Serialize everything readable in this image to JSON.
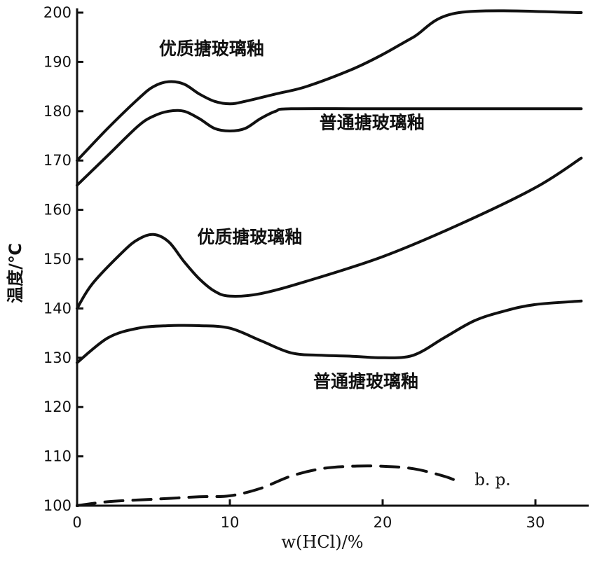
{
  "chart_data": {
    "type": "line",
    "title": "",
    "xlabel": "w(HCl)/%",
    "ylabel": "温度/℃",
    "xlim": [
      0,
      33
    ],
    "ylim": [
      100,
      200
    ],
    "grid": false,
    "x_ticks": [
      "0",
      "10",
      "20",
      "30"
    ],
    "y_ticks": [
      "100",
      "110",
      "120",
      "130",
      "140",
      "150",
      "160",
      "170",
      "180",
      "190",
      "200"
    ],
    "series": [
      {
        "name": "优质搪玻璃釉",
        "style": "solid",
        "x": [
          0,
          2,
          4,
          5,
          6,
          7,
          8,
          9,
          10,
          11,
          13,
          15,
          18,
          20,
          22,
          25,
          33
        ],
        "y": [
          170,
          176.5,
          182.5,
          185,
          186,
          185.5,
          183.5,
          182,
          181.5,
          182,
          183.5,
          185,
          188.5,
          191.5,
          195,
          200,
          200
        ]
      },
      {
        "name": "普通搪玻璃釉",
        "style": "solid",
        "x": [
          0,
          2,
          4,
          5,
          6,
          7,
          8,
          9,
          10,
          11,
          12,
          13,
          14,
          20,
          33
        ],
        "y": [
          165,
          171,
          177,
          179,
          180,
          180,
          178.5,
          176.5,
          176,
          176.5,
          178.5,
          180,
          180.5,
          180.5,
          180.5
        ]
      },
      {
        "name": "优质搪玻璃釉",
        "style": "solid",
        "x": [
          0,
          1,
          3,
          4,
          5,
          6,
          7,
          8,
          9,
          10,
          12,
          15,
          20,
          25,
          30,
          33
        ],
        "y": [
          140,
          145,
          151.5,
          154,
          155,
          153.5,
          149.5,
          146,
          143.5,
          142.5,
          143,
          145.5,
          150.5,
          157,
          164.5,
          170.5
        ]
      },
      {
        "name": "普通搪玻璃釉",
        "style": "solid",
        "x": [
          0,
          2,
          4,
          6,
          8,
          10,
          12,
          14,
          16,
          18,
          20,
          22,
          24,
          26,
          28,
          30,
          33
        ],
        "y": [
          129,
          134,
          136,
          136.5,
          136.5,
          136,
          133.5,
          131,
          130.5,
          130.3,
          130,
          130.5,
          134,
          137.5,
          139.5,
          140.8,
          141.5
        ]
      },
      {
        "name": "b. p.",
        "style": "dashed",
        "x": [
          0,
          2,
          5,
          8,
          10,
          12,
          14,
          16,
          18,
          20,
          22,
          24,
          25
        ],
        "y": [
          100,
          100.8,
          101.3,
          101.8,
          102,
          103.5,
          106,
          107.5,
          108,
          108,
          107.5,
          106,
          104.8
        ]
      }
    ],
    "annotations": [
      {
        "text": "优质搪玻璃釉",
        "x": 8.8,
        "y": 191.5,
        "for_series": 0
      },
      {
        "text": "普通搪玻璃釉",
        "x": 19.3,
        "y": 176.5,
        "for_series": 1
      },
      {
        "text": "优质搪玻璃釉",
        "x": 11.3,
        "y": 153.3,
        "for_series": 2
      },
      {
        "text": "普通搪玻璃釉",
        "x": 18.9,
        "y": 124,
        "for_series": 3
      },
      {
        "text": "b. p.",
        "x": 27.2,
        "y": 104.2,
        "for_series": 4
      }
    ]
  }
}
